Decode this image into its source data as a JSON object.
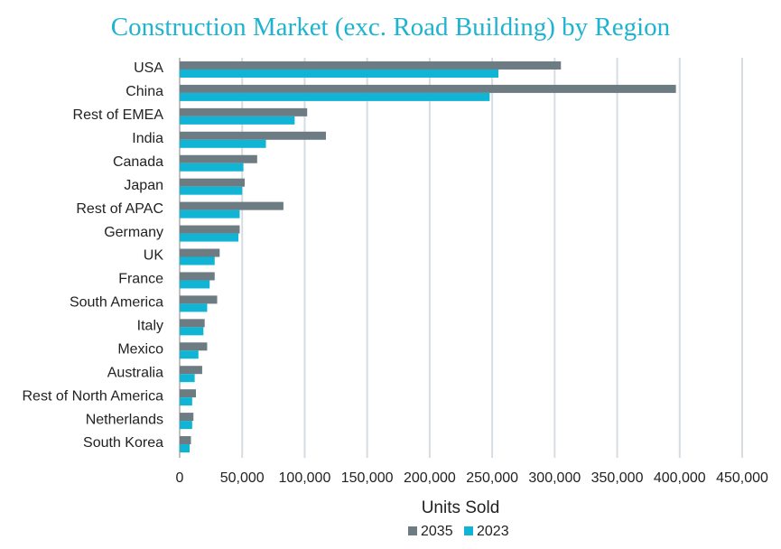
{
  "chart_data": {
    "type": "bar",
    "orientation": "horizontal",
    "title": "Construction Market (exc. Road Building) by Region",
    "xlabel": "Units Sold",
    "ylabel": "",
    "xlim": [
      0,
      450000
    ],
    "x_ticks": [
      "0",
      "50,000",
      "100,000",
      "150,000",
      "200,000",
      "250,000",
      "300,000",
      "350,000",
      "400,000",
      "450,000"
    ],
    "grid": "vertical",
    "legend_position": "bottom",
    "categories": [
      "USA",
      "China",
      "Rest of EMEA",
      "India",
      "Canada",
      "Japan",
      "Rest of APAC",
      "Germany",
      "UK",
      "France",
      "South America",
      "Italy",
      "Mexico",
      "Australia",
      "Rest of North America",
      "Netherlands",
      "South Korea"
    ],
    "series": [
      {
        "name": "2035",
        "color": "#6d7b83",
        "values": [
          305000,
          397000,
          102000,
          117000,
          62000,
          52000,
          83000,
          48000,
          32000,
          28000,
          30000,
          20000,
          22000,
          18000,
          13000,
          11000,
          9000
        ]
      },
      {
        "name": "2023",
        "color": "#10b4d4",
        "values": [
          255000,
          248000,
          92000,
          69000,
          51000,
          50000,
          48000,
          47000,
          28000,
          24000,
          22000,
          19000,
          15000,
          12000,
          10000,
          10000,
          8000
        ]
      }
    ]
  }
}
